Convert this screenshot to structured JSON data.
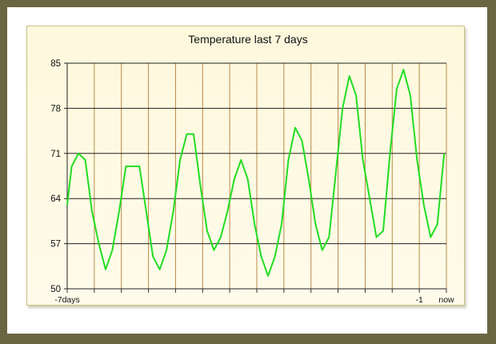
{
  "chart_data": {
    "type": "line",
    "title": "Temperature last 7 days",
    "xlabel": "",
    "ylabel": "",
    "ylim": [
      50,
      85
    ],
    "yticks": [
      50,
      57,
      64,
      71,
      78,
      85
    ],
    "x_tick_labels": [
      {
        "label": "-7days",
        "value": 0,
        "color": "#111111"
      },
      {
        "label": "-1",
        "value": 156,
        "color": "#cc1111"
      },
      {
        "label": "now",
        "value": 168,
        "color": "#111111"
      }
    ],
    "x_range": [
      0,
      168
    ],
    "x_gridlines": [
      0,
      12,
      24,
      36,
      48,
      60,
      72,
      84,
      96,
      108,
      120,
      132,
      144,
      156,
      168
    ],
    "grid": true,
    "series": [
      {
        "color": "#22dd22",
        "x": [
          0,
          2,
          5,
          8,
          11,
          14,
          17,
          20,
          23,
          26,
          29,
          32,
          35,
          38,
          41,
          44,
          47,
          50,
          53,
          56,
          59,
          62,
          65,
          68,
          71,
          74,
          77,
          80,
          83,
          86,
          89,
          92,
          95,
          98,
          101,
          104,
          107,
          110,
          113,
          116,
          119,
          122,
          125,
          128,
          131,
          134,
          137,
          140,
          143,
          146,
          149,
          152,
          155,
          158,
          161,
          164,
          167
        ],
        "y": [
          63,
          69,
          71,
          70,
          62,
          57,
          53,
          56,
          62,
          69,
          69,
          69,
          62,
          55,
          53,
          56,
          62,
          70,
          74,
          74,
          66,
          59,
          56,
          58,
          62,
          67,
          70,
          67,
          60,
          55,
          52,
          55,
          60,
          70,
          75,
          73,
          67,
          60,
          56,
          58,
          68,
          78,
          83,
          80,
          70,
          64,
          58,
          59,
          71,
          81,
          84,
          80,
          70,
          63,
          58,
          60,
          71
        ]
      }
    ]
  }
}
